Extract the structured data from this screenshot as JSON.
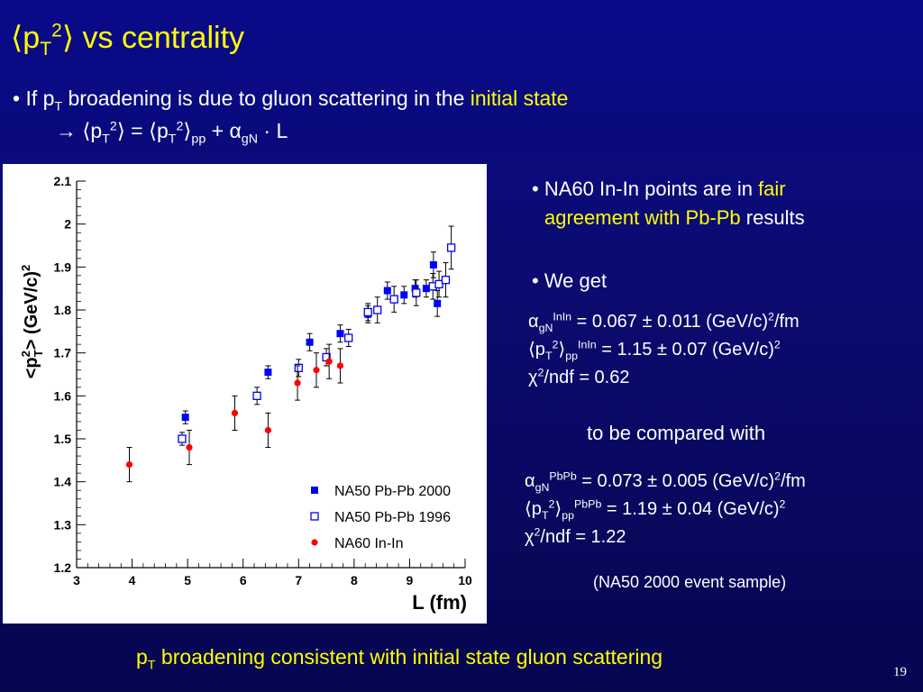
{
  "slide": {
    "title_lead": "⟨p",
    "title_sub": "T",
    "title_sup": "2",
    "title_tail": "⟩ vs centrality",
    "bullet1_lead": "• If p",
    "bullet1_sub": "T",
    "bullet1_mid": " broadening is due to gluon scattering in the ",
    "bullet1_highlight": "initial state",
    "formula_arrow": "→ ⟨p",
    "formula_sub1": "T",
    "formula_sup1": "2",
    "formula_mid1": "⟩ = ⟨p",
    "formula_sub2": "T",
    "formula_sup2": "2",
    "formula_mid2": "⟩",
    "formula_sub3": "pp",
    "formula_plus": " + α",
    "formula_sub4": "gN",
    "formula_tail": " · L",
    "right_b1_lead": "• NA60 In-In points are in ",
    "right_b1_hl1": "fair",
    "right_b1_hl2": "agreement with Pb-Pb",
    "right_b1_tail": " results",
    "right_b2": "• We get",
    "r1_a": "α",
    "r1_sub": "gN",
    "r1_sup": "InIn",
    "r1_val": " = 0.067 ± 0.011 (GeV/c)",
    "r1_sup2": "2",
    "r1_unit": "/fm",
    "r2_a": "⟨p",
    "r2_sub": "T",
    "r2_sup": "2",
    "r2_b": "⟩",
    "r2_sub2": "pp",
    "r2_sup2": "InIn",
    "r2_val": " = 1.15 ± 0.07 (GeV/c)",
    "r2_sup3": "2",
    "r3_a": "χ",
    "r3_sup": "2",
    "r3_val": "/ndf = 0.62",
    "compare": "to be compared with",
    "c1_a": "α",
    "c1_sub": "gN",
    "c1_sup": "PbPb",
    "c1_val": " = 0.073 ± 0.005 (GeV/c)",
    "c1_sup2": "2",
    "c1_unit": "/fm",
    "c2_a": "⟨p",
    "c2_sub": "T",
    "c2_sup": "2",
    "c2_b": "⟩",
    "c2_sub2": "pp",
    "c2_sup2": "PbPb",
    "c2_val": " = 1.19 ± 0.04 (GeV/c)",
    "c2_sup3": "2",
    "c3_a": "χ",
    "c3_sup": "2",
    "c3_val": "/ndf = 1.22",
    "sample_note": "(NA50 2000 event sample)",
    "bottom_lead": "p",
    "bottom_sub": "T",
    "bottom_tail": " broadening consistent with initial state gluon scattering",
    "page_number": "19"
  },
  "colors": {
    "highlight": "#ffff00",
    "text": "#ffffff",
    "series_blue": "#0000ff",
    "series_red": "#ff0000"
  },
  "chart_data": {
    "type": "scatter",
    "xlabel": "L (fm)",
    "ylabel_parts": {
      "lead": "<p",
      "sub": "T",
      "sup": "2",
      "tail": "> (GeV/c)",
      "sup2": "2"
    },
    "xlim": [
      3,
      10
    ],
    "ylim": [
      1.2,
      2.1
    ],
    "x_ticks": [
      3,
      4,
      5,
      6,
      7,
      8,
      9,
      10
    ],
    "y_ticks": [
      "1.2",
      "1.3",
      "1.4",
      "1.5",
      "1.6",
      "1.7",
      "1.8",
      "1.9",
      "2",
      "2.1"
    ],
    "legend_position": "bottom-right",
    "series": [
      {
        "name": "NA50 Pb-Pb 2000",
        "marker": "filled-square",
        "color": "#0000ff",
        "points": [
          {
            "x": 4.96,
            "y": 1.55,
            "err": 0.015
          },
          {
            "x": 6.45,
            "y": 1.655,
            "err": 0.015
          },
          {
            "x": 7.2,
            "y": 1.725,
            "err": 0.02
          },
          {
            "x": 7.75,
            "y": 1.745,
            "err": 0.02
          },
          {
            "x": 8.25,
            "y": 1.79,
            "err": 0.02
          },
          {
            "x": 8.6,
            "y": 1.845,
            "err": 0.02
          },
          {
            "x": 8.9,
            "y": 1.835,
            "err": 0.02
          },
          {
            "x": 9.1,
            "y": 1.85,
            "err": 0.02
          },
          {
            "x": 9.3,
            "y": 1.85,
            "err": 0.02
          },
          {
            "x": 9.43,
            "y": 1.905,
            "err": 0.03
          },
          {
            "x": 9.5,
            "y": 1.815,
            "err": 0.03
          }
        ]
      },
      {
        "name": "NA50 Pb-Pb 1996",
        "marker": "open-square",
        "color": "#0000ff",
        "points": [
          {
            "x": 4.9,
            "y": 1.5,
            "err": 0.015
          },
          {
            "x": 6.25,
            "y": 1.6,
            "err": 0.02
          },
          {
            "x": 7.0,
            "y": 1.665,
            "err": 0.02
          },
          {
            "x": 7.5,
            "y": 1.69,
            "err": 0.02
          },
          {
            "x": 7.9,
            "y": 1.735,
            "err": 0.02
          },
          {
            "x": 8.25,
            "y": 1.795,
            "err": 0.02
          },
          {
            "x": 8.42,
            "y": 1.8,
            "err": 0.03
          },
          {
            "x": 8.72,
            "y": 1.825,
            "err": 0.03
          },
          {
            "x": 9.12,
            "y": 1.84,
            "err": 0.03
          },
          {
            "x": 9.42,
            "y": 1.855,
            "err": 0.03
          },
          {
            "x": 9.53,
            "y": 1.86,
            "err": 0.03
          },
          {
            "x": 9.65,
            "y": 1.87,
            "err": 0.04
          },
          {
            "x": 9.75,
            "y": 1.945,
            "err": 0.05
          }
        ]
      },
      {
        "name": "NA60 In-In",
        "marker": "filled-circle",
        "color": "#ff0000",
        "points": [
          {
            "x": 3.95,
            "y": 1.44,
            "err": 0.04
          },
          {
            "x": 5.03,
            "y": 1.48,
            "err": 0.04
          },
          {
            "x": 5.85,
            "y": 1.56,
            "err": 0.04
          },
          {
            "x": 6.45,
            "y": 1.52,
            "err": 0.04
          },
          {
            "x": 6.98,
            "y": 1.63,
            "err": 0.04
          },
          {
            "x": 7.32,
            "y": 1.66,
            "err": 0.04
          },
          {
            "x": 7.55,
            "y": 1.68,
            "err": 0.04
          },
          {
            "x": 7.75,
            "y": 1.67,
            "err": 0.04
          }
        ]
      }
    ]
  }
}
